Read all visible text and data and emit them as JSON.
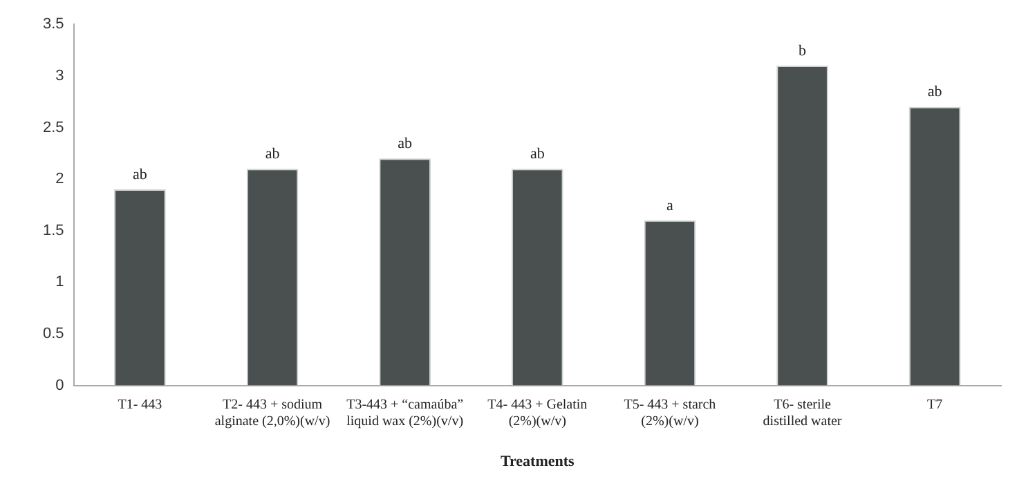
{
  "chart_data": {
    "type": "bar",
    "xlabel": "Treatments",
    "categories": [
      "T1- 443",
      "T2- 443 + sodium alginate (2,0%)(w/v)",
      "T3-443 + “camaúba” liquid wax (2%)(v/v)",
      "T4- 443 + Gelatin (2%)(w/v)",
      "T5- 443 + starch (2%)(w/v)",
      "T6- sterile distilled water",
      "T7"
    ],
    "values": [
      1.9,
      2.1,
      2.2,
      2.1,
      1.6,
      3.1,
      2.7
    ],
    "color": "#4a5050",
    "ylim": [
      0,
      3.5
    ],
    "yticks": [
      0,
      0.5,
      1,
      1.5,
      2,
      2.5,
      3,
      3.5
    ],
    "grid": false,
    "legend": false,
    "annotations": [
      {
        "text": "ab",
        "x": "T1- 443",
        "y": 1.9
      },
      {
        "text": "ab",
        "x": "T2- 443 + sodium alginate (2,0%)(w/v)",
        "y": 2.1
      },
      {
        "text": "ab",
        "x": "T3-443 + “camaúba” liquid wax (2%)(v/v)",
        "y": 2.2
      },
      {
        "text": "ab",
        "x": "T4- 443 + Gelatin (2%)(w/v)",
        "y": 2.1
      },
      {
        "text": "a",
        "x": "T5- 443 + starch (2%)(w/v)",
        "y": 1.6
      },
      {
        "text": "b",
        "x": "T6- sterile distilled water",
        "y": 3.1
      },
      {
        "text": "ab",
        "x": "T7",
        "y": 2.7
      }
    ]
  }
}
